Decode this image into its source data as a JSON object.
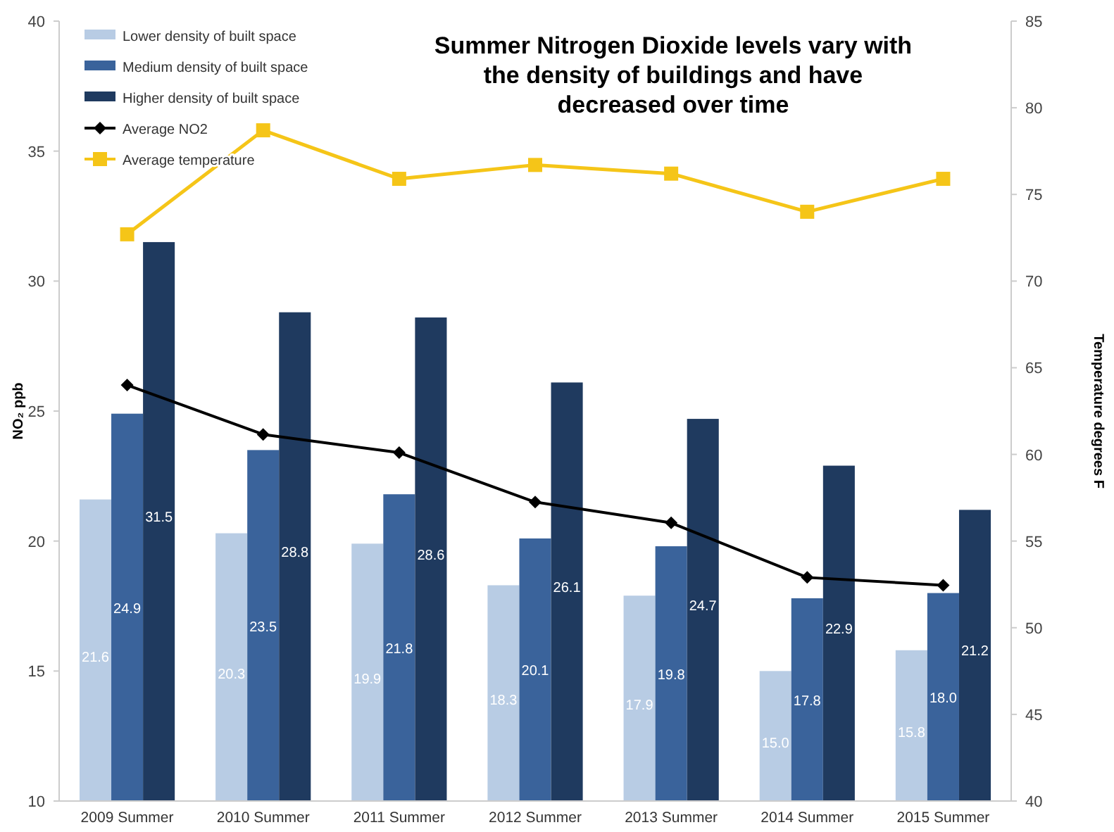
{
  "chart_data": {
    "type": "bar",
    "title": "Summer Nitrogen Dioxide levels vary with the density of buildings and have decreased over time",
    "ylabel": "NO₂ ppb",
    "y2label": "Temperature degrees F",
    "categories": [
      "2009 Summer",
      "2010 Summer",
      "2011 Summer",
      "2012 Summer",
      "2013 Summer",
      "2014 Summer",
      "2015 Summer"
    ],
    "series": [
      {
        "name": "Lower density of built space",
        "color": "#b8cce4",
        "values": [
          21.6,
          20.3,
          19.9,
          18.3,
          17.9,
          15.0,
          15.8
        ],
        "value_labels": [
          "21.6",
          "20.3",
          "19.9",
          "18.3",
          "17.9",
          "15.0",
          "15.8"
        ]
      },
      {
        "name": "Medium density of built space",
        "color": "#3a639b",
        "values": [
          24.9,
          23.5,
          21.8,
          20.1,
          19.8,
          17.8,
          18.0
        ],
        "value_labels": [
          "24.9",
          "23.5",
          "21.8",
          "20.1",
          "19.8",
          "17.8",
          "18.0"
        ]
      },
      {
        "name": "Higher density of built space",
        "color": "#1f3a5f",
        "values": [
          31.5,
          28.8,
          28.6,
          26.1,
          24.7,
          22.9,
          21.2
        ],
        "value_labels": [
          "31.5",
          "28.8",
          "28.6",
          "26.1",
          "24.7",
          "22.9",
          "21.2"
        ]
      },
      {
        "name": "Average NO2",
        "type": "line",
        "color": "#000000",
        "marker": "diamond",
        "values": [
          26.0,
          24.1,
          23.4,
          21.5,
          20.7,
          18.6,
          18.3
        ]
      },
      {
        "name": "Average temperature",
        "type": "line",
        "axis": "y2",
        "color": "#f5c518",
        "marker": "square",
        "values": [
          72.7,
          78.7,
          75.9,
          76.7,
          76.2,
          74.0,
          75.9
        ]
      }
    ],
    "ylim": [
      10,
      40
    ],
    "yticks": [
      10,
      15,
      20,
      25,
      30,
      35,
      40
    ],
    "y2lim": [
      40,
      85
    ],
    "y2ticks": [
      40,
      45,
      50,
      55,
      60,
      65,
      70,
      75,
      80,
      85
    ],
    "legend": "top left",
    "grid": false
  }
}
